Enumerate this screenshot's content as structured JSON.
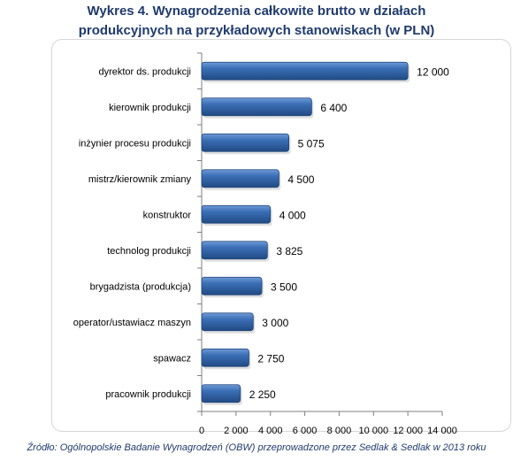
{
  "title_line1": "Wykres 4. Wynagrodzenia całkowite brutto w działach",
  "title_line2": "produkcyjnych na przykładowych stanowiskach (w PLN)",
  "source": "Źródło: Ogólnopolskie Badanie Wynagrodzeń (OBW) przeprowadzone przez Sedlak & Sedlak w 2013 roku",
  "colors": {
    "bar": "#3b6fb6",
    "bar_light": "#6f9ad6",
    "bar_dark": "#214a84",
    "text": "#000000",
    "title": "#1f3a6e"
  },
  "chart_data": {
    "type": "bar",
    "orientation": "horizontal",
    "categories": [
      "dyrektor ds. produkcji",
      "kierownik produkcji",
      "inżynier procesu produkcji",
      "mistrz/kierownik zmiany",
      "konstruktor",
      "technolog produkcji",
      "brygadzista (produkcja)",
      "operator/ustawiacz maszyn",
      "spawacz",
      "pracownik produkcji"
    ],
    "values": [
      12000,
      6400,
      5075,
      4500,
      4000,
      3825,
      3500,
      3000,
      2750,
      2250
    ],
    "value_labels": [
      "12 000",
      "6 400",
      "5 075",
      "4 500",
      "4 000",
      "3 825",
      "3 500",
      "3 000",
      "2 750",
      "2 250"
    ],
    "xlim": [
      0,
      14000
    ],
    "xticks": [
      0,
      2000,
      4000,
      6000,
      8000,
      10000,
      12000,
      14000
    ],
    "xtick_labels": [
      "0",
      "2 000",
      "4 000",
      "6 000",
      "8 000",
      "10 000",
      "12 000",
      "14 000"
    ],
    "grid": false,
    "legend": "none"
  }
}
